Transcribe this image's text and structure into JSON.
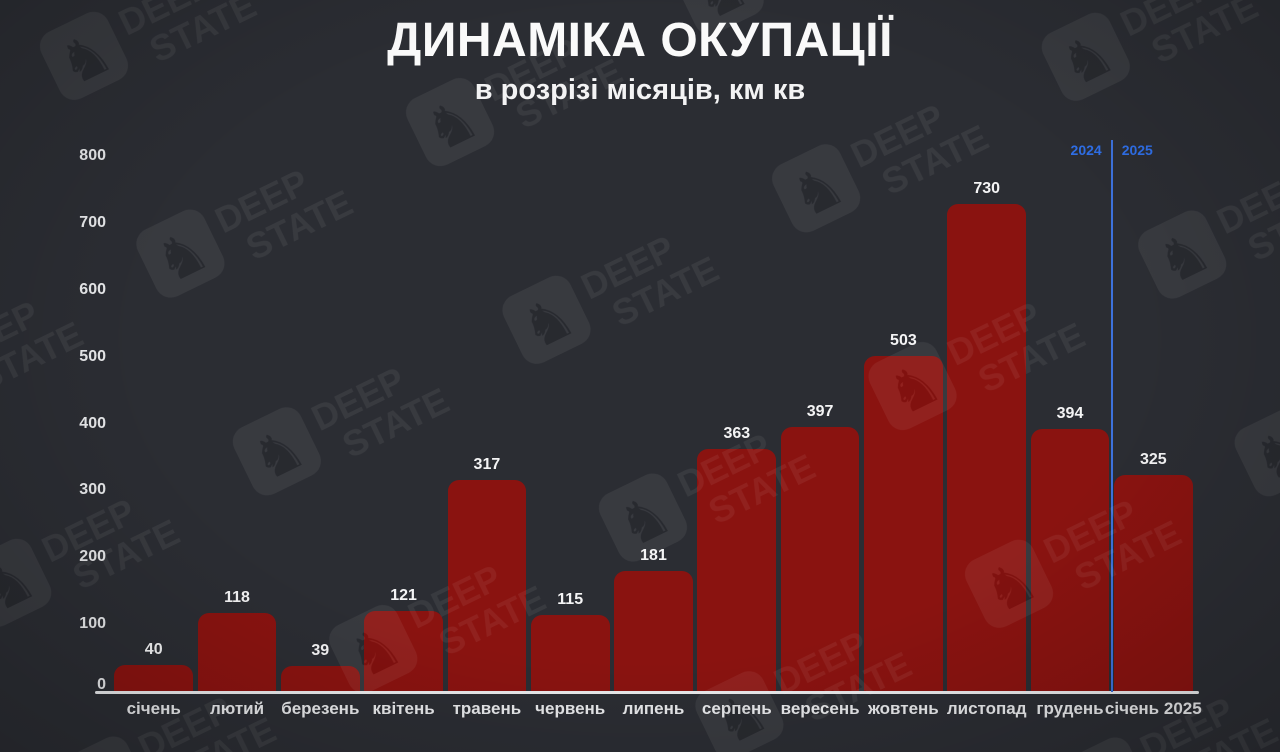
{
  "title": "ДИНАМІКА ОКУПАЦІЇ",
  "subtitle": "в розрізі місяців, км кв",
  "watermark": {
    "icon": "knight-chess-shield",
    "line1": "DEEP",
    "line2": "STATE"
  },
  "colors": {
    "background": "#2b2d33",
    "bar": "#8a1310",
    "axis_line": "#e9eaec",
    "tick_text": "#e7e8ea",
    "value_text": "#f4f4f5",
    "divider_line": "#3d72dd",
    "era_text": "#2f6fe8",
    "title_text": "#fafafa"
  },
  "chart_data": {
    "type": "bar",
    "title": "ДИНАМІКА ОКУПАЦІЇ",
    "subtitle": "в розрізі місяців, км кв",
    "categories": [
      "січень",
      "лютий",
      "березень",
      "квітень",
      "травень",
      "червень",
      "липень",
      "серпень",
      "вересень",
      "жовтень",
      "листопад",
      "грудень",
      "січень 2025"
    ],
    "values": [
      40,
      118,
      39,
      121,
      317,
      115,
      181,
      363,
      397,
      503,
      730,
      394,
      325
    ],
    "xlabel": "",
    "ylabel": "",
    "ylim": [
      0,
      800
    ],
    "yticks": [
      0,
      100,
      200,
      300,
      400,
      500,
      600,
      700,
      800
    ],
    "grid": false,
    "legend": false,
    "value_labels_shown": true,
    "divider": {
      "after_index": 11,
      "label_left": "2024",
      "label_right": "2025"
    }
  }
}
